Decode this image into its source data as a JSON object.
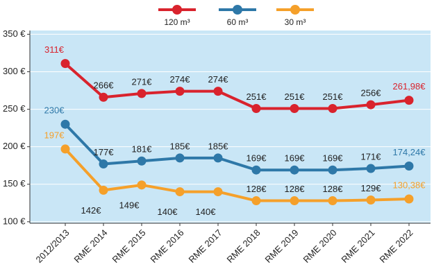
{
  "chart_data": {
    "type": "line",
    "categories": [
      "2012/2013",
      "RME 2014",
      "RME 2015",
      "RME 2016",
      "RME 2017",
      "RME 2018",
      "RME 2019",
      "RME 2020",
      "RME 2021",
      "RME 2022"
    ],
    "series": [
      {
        "name": "120 m³",
        "color": "#d9232d",
        "values": [
          311,
          266,
          271,
          274,
          274,
          251,
          251,
          251,
          256,
          261.98
        ],
        "value_labels": [
          "311€",
          "266€",
          "271€",
          "274€",
          "274€",
          "251€",
          "251€",
          "251€",
          "256€",
          "261,98€"
        ]
      },
      {
        "name": "60 m³",
        "color": "#2e78a8",
        "values": [
          230,
          177,
          181,
          185,
          185,
          169,
          169,
          169,
          171,
          174.24
        ],
        "value_labels": [
          "230€",
          "177€",
          "181€",
          "185€",
          "185€",
          "169€",
          "169€",
          "169€",
          "171€",
          "174,24€"
        ]
      },
      {
        "name": "30 m³",
        "color": "#f5a02a",
        "values": [
          197,
          142,
          149,
          140,
          140,
          128,
          128,
          128,
          129,
          130.38
        ],
        "value_labels": [
          "197€",
          "142€",
          "149€",
          "140€",
          "140€",
          "128€",
          "128€",
          "128€",
          "129€",
          "130,38€"
        ]
      }
    ],
    "ylim": [
      98,
      355
    ],
    "yticks": [
      {
        "value": 100,
        "label": "100 €"
      },
      {
        "value": 150,
        "label": "150 €"
      },
      {
        "value": 200,
        "label": "200 €"
      },
      {
        "value": 250,
        "label": "250 €"
      },
      {
        "value": 300,
        "label": "300 €"
      },
      {
        "value": 350,
        "label": "350 €"
      }
    ],
    "grid": true
  }
}
